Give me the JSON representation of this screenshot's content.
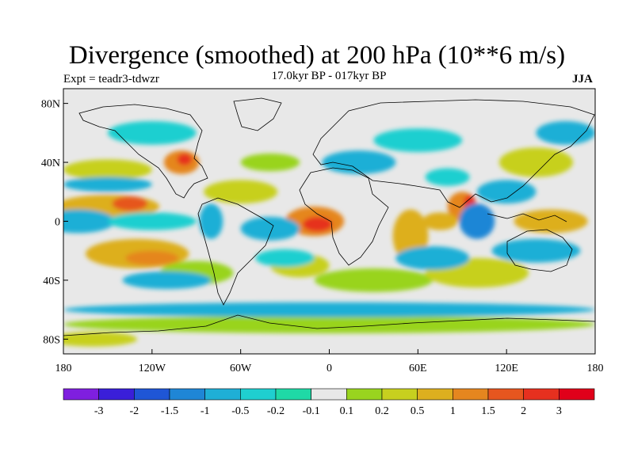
{
  "title": "Divergence (smoothed) at 200 hPa (10**6 m/s)",
  "experiment": "Expt = teadr3-tdwzr",
  "subtitle": "17.0kyr BP - 017kyr BP",
  "season": "JJA",
  "map": {
    "lat_ticks": [
      "80N",
      "40N",
      "0",
      "40S",
      "80S"
    ],
    "lon_ticks": [
      "180",
      "120W",
      "60W",
      "0",
      "60E",
      "120E",
      "180"
    ],
    "lon_range": [
      -180,
      180
    ],
    "lat_range": [
      -90,
      90
    ]
  },
  "colorbar": {
    "labels": [
      "-3",
      "-2",
      "-1.5",
      "-1",
      "-0.5",
      "-0.2",
      "-0.1",
      "0.1",
      "0.2",
      "0.5",
      "1",
      "1.5",
      "2",
      "3"
    ],
    "colors": [
      "#7f1fdf",
      "#3a1fd9",
      "#1f56d6",
      "#1f86d6",
      "#1fafd6",
      "#1fcfd0",
      "#1fd9a6",
      "#e8e8e8",
      "#99d41f",
      "#c7d01f",
      "#ddaf1f",
      "#e5861f",
      "#e6561f",
      "#e6301f",
      "#e0001a"
    ]
  },
  "field_blobs": [
    {
      "lon": -150,
      "lat": 10,
      "rx": 35,
      "ry": 8,
      "level": 10
    },
    {
      "lon": -135,
      "lat": 12,
      "rx": 12,
      "ry": 5,
      "level": 12
    },
    {
      "lon": -150,
      "lat": 35,
      "rx": 30,
      "ry": 7,
      "level": 9
    },
    {
      "lon": -130,
      "lat": -22,
      "rx": 35,
      "ry": 10,
      "level": 10
    },
    {
      "lon": -120,
      "lat": -25,
      "rx": 18,
      "ry": 5,
      "level": 11
    },
    {
      "lon": -100,
      "lat": 40,
      "rx": 12,
      "ry": 8,
      "level": 11
    },
    {
      "lon": -98,
      "lat": 42,
      "rx": 5,
      "ry": 4,
      "level": 13
    },
    {
      "lon": -10,
      "lat": 0,
      "rx": 20,
      "ry": 10,
      "level": 11
    },
    {
      "lon": -8,
      "lat": -2,
      "rx": 10,
      "ry": 5,
      "level": 13
    },
    {
      "lon": 55,
      "lat": -10,
      "rx": 12,
      "ry": 18,
      "level": 10
    },
    {
      "lon": 90,
      "lat": 10,
      "rx": 10,
      "ry": 10,
      "level": 11
    },
    {
      "lon": 95,
      "lat": 12,
      "rx": 4,
      "ry": 6,
      "level": 13
    },
    {
      "lon": 75,
      "lat": 0,
      "rx": 12,
      "ry": 6,
      "level": 10
    },
    {
      "lon": 140,
      "lat": 40,
      "rx": 25,
      "ry": 10,
      "level": 9
    },
    {
      "lon": 150,
      "lat": 0,
      "rx": 25,
      "ry": 8,
      "level": 10
    },
    {
      "lon": -60,
      "lat": 20,
      "rx": 25,
      "ry": 8,
      "level": 9
    },
    {
      "lon": -40,
      "lat": 40,
      "rx": 20,
      "ry": 6,
      "level": 8
    },
    {
      "lon": 30,
      "lat": -40,
      "rx": 40,
      "ry": 8,
      "level": 8
    },
    {
      "lon": -90,
      "lat": -35,
      "rx": 25,
      "ry": 8,
      "level": 8
    },
    {
      "lon": -20,
      "lat": -30,
      "rx": 20,
      "ry": 8,
      "level": 9
    },
    {
      "lon": 100,
      "lat": -35,
      "rx": 35,
      "ry": 10,
      "level": 9
    },
    {
      "lon": 0,
      "lat": -70,
      "rx": 180,
      "ry": 6,
      "level": 8
    },
    {
      "lon": -160,
      "lat": -80,
      "rx": 30,
      "ry": 5,
      "level": 9
    },
    {
      "lon": -170,
      "lat": 0,
      "rx": 25,
      "ry": 8,
      "level": 4
    },
    {
      "lon": -120,
      "lat": 0,
      "rx": 30,
      "ry": 6,
      "level": 5
    },
    {
      "lon": -150,
      "lat": 25,
      "rx": 30,
      "ry": 5,
      "level": 4
    },
    {
      "lon": -110,
      "lat": -40,
      "rx": 30,
      "ry": 6,
      "level": 4
    },
    {
      "lon": -40,
      "lat": -5,
      "rx": 20,
      "ry": 8,
      "level": 4
    },
    {
      "lon": -30,
      "lat": -25,
      "rx": 20,
      "ry": 6,
      "level": 5
    },
    {
      "lon": 70,
      "lat": -25,
      "rx": 25,
      "ry": 8,
      "level": 4
    },
    {
      "lon": 100,
      "lat": 0,
      "rx": 12,
      "ry": 12,
      "level": 3
    },
    {
      "lon": 120,
      "lat": 20,
      "rx": 20,
      "ry": 8,
      "level": 4
    },
    {
      "lon": 140,
      "lat": -20,
      "rx": 30,
      "ry": 8,
      "level": 4
    },
    {
      "lon": 20,
      "lat": 40,
      "rx": 25,
      "ry": 8,
      "level": 4
    },
    {
      "lon": 60,
      "lat": 55,
      "rx": 30,
      "ry": 8,
      "level": 5
    },
    {
      "lon": -120,
      "lat": 60,
      "rx": 30,
      "ry": 8,
      "level": 5
    },
    {
      "lon": 0,
      "lat": -60,
      "rx": 180,
      "ry": 5,
      "level": 4
    },
    {
      "lon": 80,
      "lat": 30,
      "rx": 15,
      "ry": 6,
      "level": 5
    },
    {
      "lon": -80,
      "lat": 0,
      "rx": 8,
      "ry": 12,
      "level": 4
    },
    {
      "lon": 160,
      "lat": 60,
      "rx": 20,
      "ry": 8,
      "level": 4
    }
  ]
}
